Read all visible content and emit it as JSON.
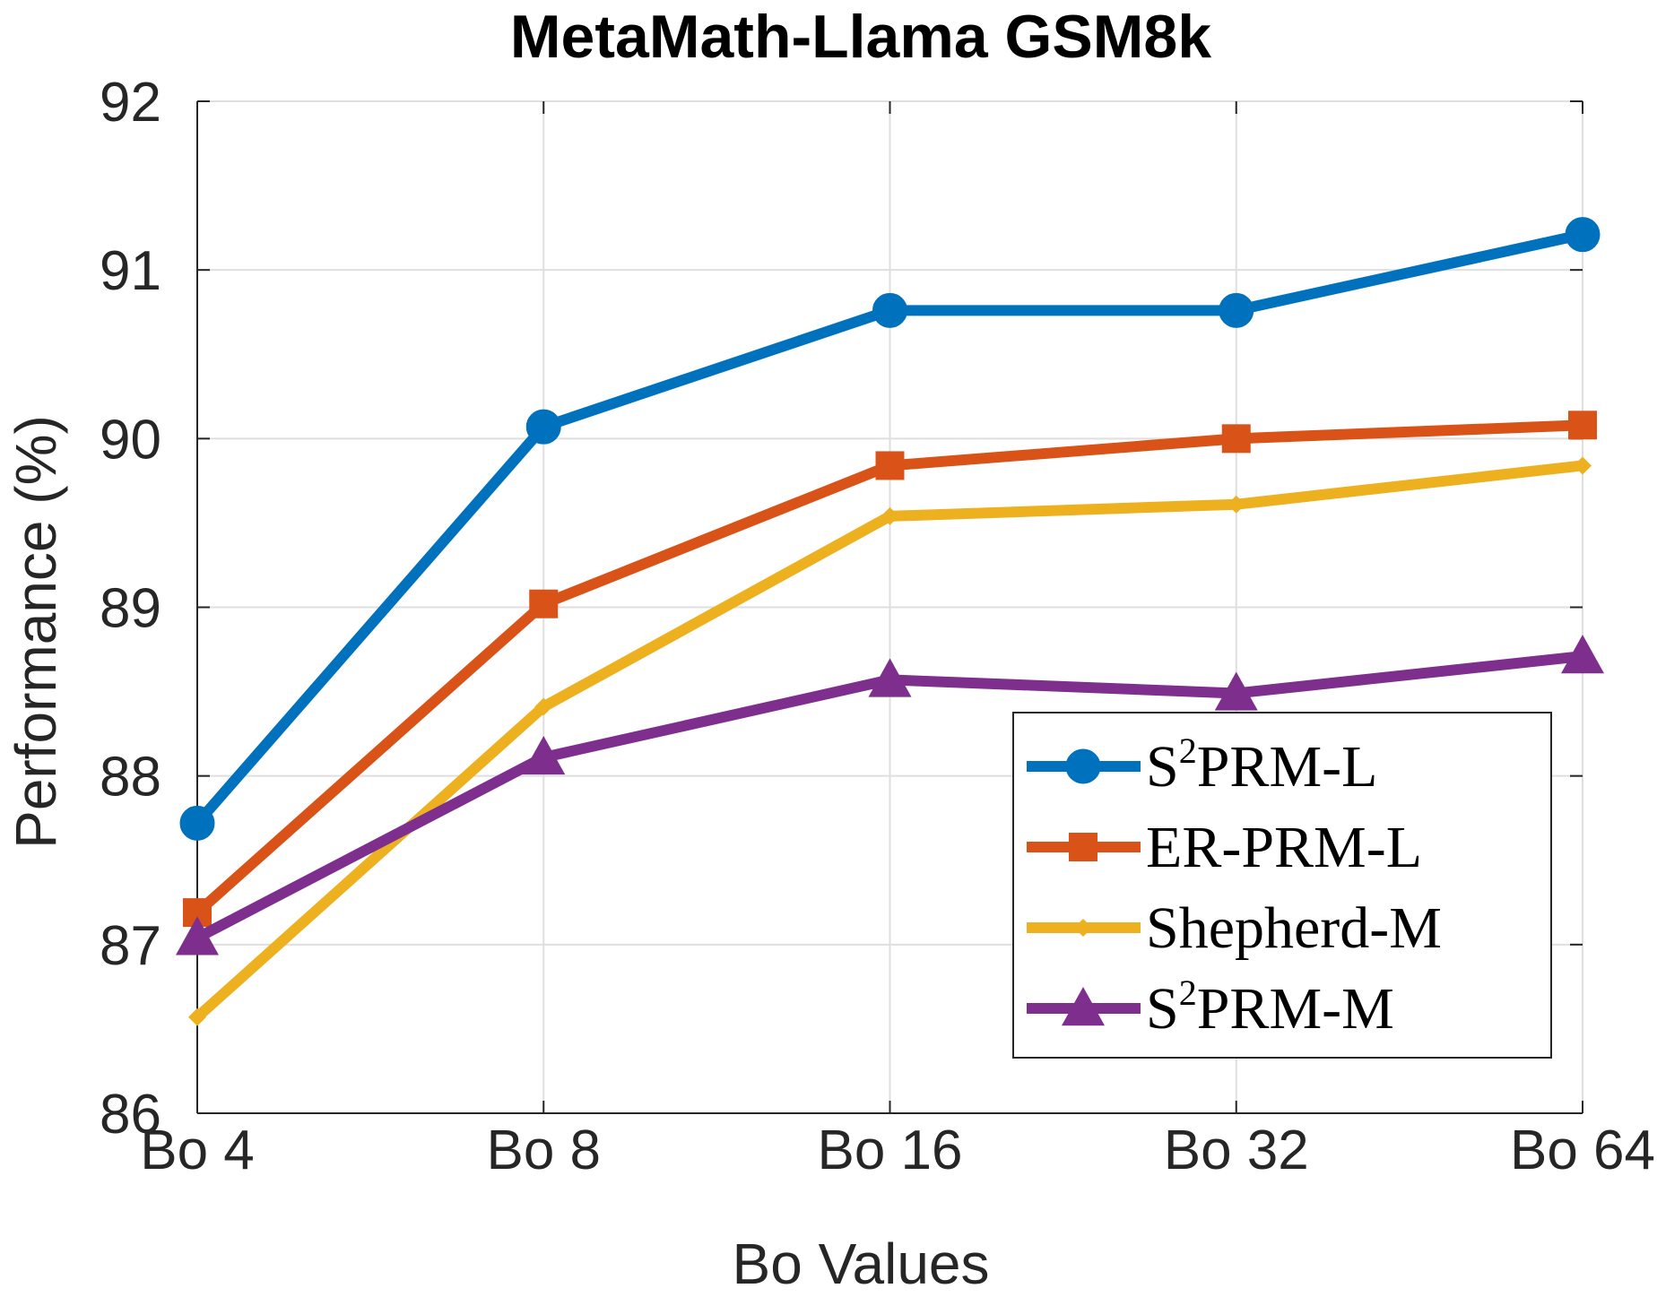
{
  "chart_data": {
    "type": "line",
    "title": "MetaMath-Llama GSM8k",
    "xlabel": "Bo Values",
    "ylabel": "Performance (%)",
    "categories": [
      "Bo 4",
      "Bo 8",
      "Bo 16",
      "Bo 32",
      "Bo 64"
    ],
    "ylim": [
      86,
      92
    ],
    "yticks": [
      "86",
      "87",
      "88",
      "89",
      "90",
      "91",
      "92"
    ],
    "grid": true,
    "legend_position": "bottom-right",
    "series": [
      {
        "name": "S2PRM-L",
        "legend_base": "S",
        "legend_sup": "2",
        "legend_rest": "PRM-L",
        "color": "#0072BD",
        "marker": "circle",
        "values": [
          87.72,
          90.07,
          90.76,
          90.76,
          91.21
        ]
      },
      {
        "name": "ER-PRM-L",
        "legend_base": "ER-PRM-L",
        "legend_sup": "",
        "legend_rest": "",
        "color": "#D95319",
        "marker": "square",
        "values": [
          87.19,
          89.02,
          89.84,
          90.0,
          90.08
        ]
      },
      {
        "name": "Shepherd-M",
        "legend_base": "Shepherd-M",
        "legend_sup": "",
        "legend_rest": "",
        "color": "#EDB120",
        "marker": "diamond",
        "values": [
          86.57,
          88.41,
          89.54,
          89.61,
          89.84
        ]
      },
      {
        "name": "S2PRM-M",
        "legend_base": "S",
        "legend_sup": "2",
        "legend_rest": "PRM-M",
        "color": "#7E2F8E",
        "marker": "triangle",
        "values": [
          87.04,
          88.11,
          88.57,
          88.49,
          88.71
        ]
      }
    ]
  }
}
